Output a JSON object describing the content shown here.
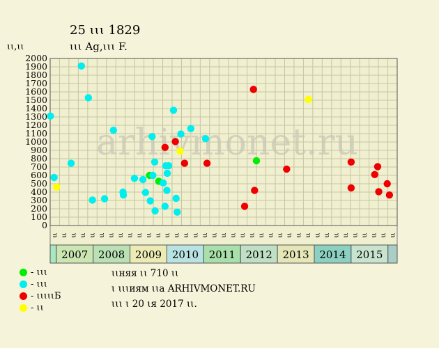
{
  "title": "25 ꙇꙇꙇ 1829",
  "subtitle": "ꙇꙇꙇ Ag,ꙇꙇꙇ F.",
  "ylabel": "ꙇꙇ,ꙇꙇ",
  "watermark": "arhivmonet.ru",
  "legend": [
    {
      "label": "- ꙇꙇꙇ",
      "color": "#00ee00"
    },
    {
      "label": "- ꙇꙇꙇ",
      "color": "#00eeee"
    },
    {
      "label": "- ꙇꙇꙇꙇꙇБ",
      "color": "#ee0000"
    },
    {
      "label": "- ꙇꙇ",
      "color": "#ffff00"
    }
  ],
  "notes": [
    "ꙇꙇняя ꙇꙇ 710 ꙇꙇ",
    "ꙇ ꙇꙇꙇиям ꙇꙇа ARHIVMONET.RU",
    "ꙇꙇꙇ ꙇ 20 ꙇя 2017 ꙇꙇ."
  ],
  "colors": {
    "background": "#f5f3d9",
    "plot_bg": "#f0efd0",
    "grid": "#c6c6a2"
  },
  "chart_data": {
    "type": "scatter",
    "ylim": [
      0,
      2000
    ],
    "yticks": [
      0,
      100,
      200,
      300,
      400,
      500,
      600,
      700,
      800,
      900,
      1000,
      1100,
      1200,
      1300,
      1400,
      1500,
      1600,
      1700,
      1800,
      1900,
      2000
    ],
    "month_labels": [
      "ꙇꙇ",
      "ꙇꙇ",
      "ꙇꙇ",
      "ꙇꙇ",
      "ꙇꙇ",
      "ꙇꙇ",
      "ꙇꙇ",
      "ꙇꙇ",
      "ꙇꙇ",
      "ꙇꙇ",
      "ꙇꙇ",
      "ꙇꙇ",
      "ꙇꙇ",
      "ꙇꙇ",
      "ꙇꙇ",
      "ꙇꙇ",
      "ꙇꙇ",
      "ꙇꙇ",
      "ꙇꙇ",
      "ꙇꙇ",
      "ꙇꙇ",
      "ꙇꙇ",
      "ꙇꙇ",
      "ꙇꙇ",
      "ꙇꙇ",
      "ꙇꙇ",
      "ꙇꙇ",
      "ꙇꙇ",
      "ꙇꙇ",
      "ꙇꙇ",
      "ꙇꙇ",
      "ꙇꙇ",
      "ꙇꙇ",
      "ꙇꙇ",
      "ꙇꙇ",
      "ꙇꙇ",
      "ꙇꙇ"
    ],
    "years": [
      {
        "label": "",
        "start": 2006.8333,
        "end": 2007.0,
        "color": "#a8e8c0"
      },
      {
        "label": "2007",
        "start": 2007.0,
        "end": 2008.0,
        "color": "#cce6b3"
      },
      {
        "label": "2008",
        "start": 2008.0,
        "end": 2009.0,
        "color": "#b9e1b4"
      },
      {
        "label": "2009",
        "start": 2009.0,
        "end": 2010.0,
        "color": "#ecebb6"
      },
      {
        "label": "2010",
        "start": 2010.0,
        "end": 2011.0,
        "color": "#b9e3e3"
      },
      {
        "label": "2011",
        "start": 2011.0,
        "end": 2012.0,
        "color": "#a9dfaa"
      },
      {
        "label": "2012",
        "start": 2012.0,
        "end": 2013.0,
        "color": "#c0e0c6"
      },
      {
        "label": "2013",
        "start": 2013.0,
        "end": 2014.0,
        "color": "#e4e6b8"
      },
      {
        "label": "2014",
        "start": 2014.0,
        "end": 2015.0,
        "color": "#8bd0c0"
      },
      {
        "label": "2015",
        "start": 2015.0,
        "end": 2016.0,
        "color": "#c8e4cf"
      },
      {
        "label": "",
        "start": 2016.0,
        "end": 2016.25,
        "color": "#a9cec7"
      }
    ],
    "xlim": [
      2006.8333,
      2016.25
    ],
    "series": [
      {
        "color": "#00ee00",
        "points": [
          [
            2009.53,
            600
          ],
          [
            2009.78,
            530
          ],
          [
            2012.43,
            775
          ]
        ]
      },
      {
        "color": "#00eeee",
        "points": [
          [
            2006.84,
            1310
          ],
          [
            2006.94,
            575
          ],
          [
            2007.4,
            745
          ],
          [
            2007.68,
            1910
          ],
          [
            2007.87,
            1530
          ],
          [
            2007.98,
            305
          ],
          [
            2008.31,
            320
          ],
          [
            2008.55,
            1140
          ],
          [
            2008.81,
            400
          ],
          [
            2008.82,
            365
          ],
          [
            2009.12,
            565
          ],
          [
            2009.35,
            550
          ],
          [
            2009.42,
            395
          ],
          [
            2009.55,
            295
          ],
          [
            2009.6,
            1065
          ],
          [
            2009.62,
            600
          ],
          [
            2009.67,
            760
          ],
          [
            2009.68,
            175
          ],
          [
            2009.9,
            510
          ],
          [
            2009.95,
            230
          ],
          [
            2009.97,
            715
          ],
          [
            2010.0,
            420
          ],
          [
            2010.01,
            625
          ],
          [
            2010.05,
            715
          ],
          [
            2010.18,
            1380
          ],
          [
            2010.25,
            325
          ],
          [
            2010.28,
            160
          ],
          [
            2010.38,
            1095
          ],
          [
            2010.65,
            1160
          ],
          [
            2011.05,
            1040
          ]
        ]
      },
      {
        "color": "#ee0000",
        "points": [
          [
            2009.95,
            935
          ],
          [
            2010.23,
            1005
          ],
          [
            2010.48,
            745
          ],
          [
            2011.09,
            745
          ],
          [
            2012.11,
            230
          ],
          [
            2012.35,
            1630
          ],
          [
            2012.38,
            420
          ],
          [
            2013.25,
            675
          ],
          [
            2015.0,
            760
          ],
          [
            2015.0,
            450
          ],
          [
            2015.64,
            610
          ],
          [
            2015.72,
            705
          ],
          [
            2015.75,
            405
          ],
          [
            2015.98,
            500
          ],
          [
            2016.04,
            365
          ]
        ]
      },
      {
        "color": "#ffff00",
        "points": [
          [
            2007.01,
            460
          ],
          [
            2010.36,
            890
          ],
          [
            2013.84,
            1510
          ]
        ]
      }
    ]
  }
}
